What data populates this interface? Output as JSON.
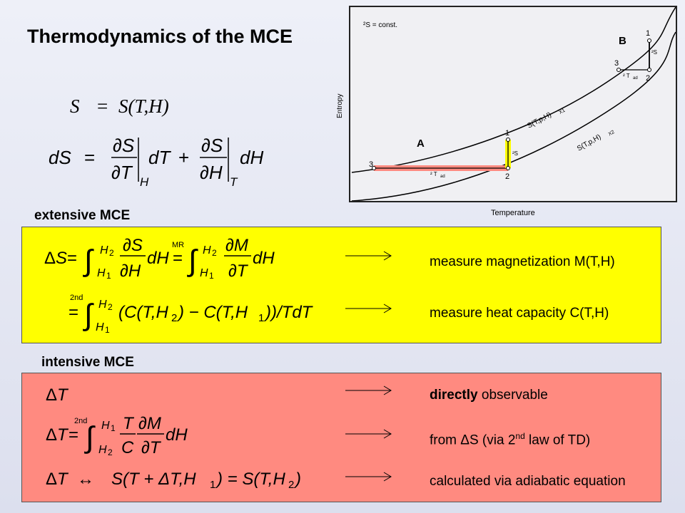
{
  "title": "Thermodynamics of the MCE",
  "eq1": {
    "lhs": "S",
    "op": "=",
    "rhs": "S(T,H)"
  },
  "eq2": {
    "lhs": "dS",
    "op": "="
  },
  "extensive": {
    "heading": "extensive MCE",
    "mr_label": "MR",
    "second_label": "2nd",
    "desc1": "measure magnetization M(T,H)",
    "desc2": "measure heat capacity C(T,H)"
  },
  "intensive": {
    "heading": "intensive MCE",
    "second_label": "2nd",
    "desc1_bold": "directly",
    "desc1_rest": " observable",
    "desc2_pre": "from ΔS (via 2",
    "desc2_sup": "nd",
    "desc2_post": " law of TD)",
    "desc3": "calculated via adiabatic equation"
  },
  "graph": {
    "const_label": "²S =   const.",
    "y_axis": "Entropy",
    "x_axis": "Temperature",
    "label_A": "A",
    "label_B": "B",
    "curve1_label": "S(T,p,H)",
    "curve1_sub": "X1",
    "curve2_label": "S(T,p,H)",
    "curve2_sub": "X2",
    "pt1": "1",
    "pt2": "2",
    "pt3": "3",
    "ds_label": "²S",
    "dt_label": "² T",
    "dt_sub": "ad"
  }
}
